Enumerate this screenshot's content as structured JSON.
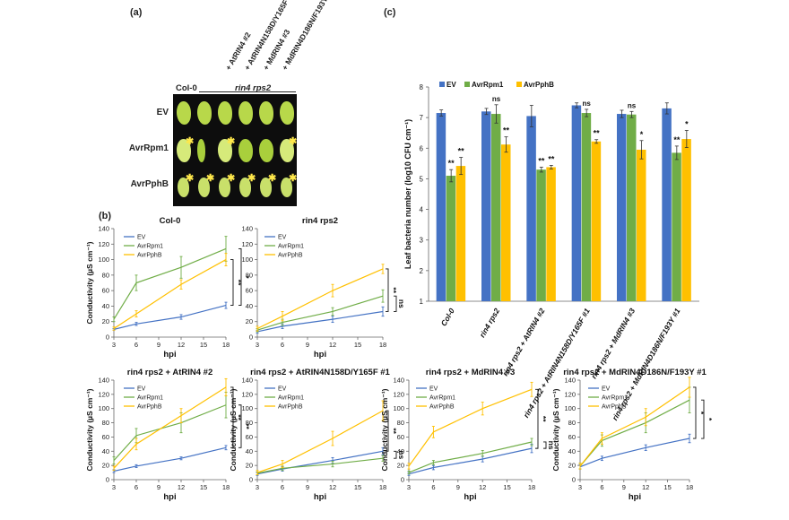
{
  "panels": {
    "a": "(a)",
    "b": "(b)",
    "c": "(c)"
  },
  "panel_a": {
    "col0_label": "Col-0",
    "mutant_label": "rin4 rps2",
    "column_labels": [
      "+ AtRIN4 #2",
      "+ AtRIN4N158D/Y165F #1",
      "+ MdRIN4 #3",
      "+ MdRIN4D186N/F193Y #1"
    ],
    "row_labels": [
      "EV",
      "AvrRpm1",
      "AvrPphB"
    ],
    "colors": {
      "leaf": "#b8d84a",
      "background": "#0d0d0d",
      "marker": "#ffe84a"
    }
  },
  "colors": {
    "EV": "#4472c4",
    "AvrRpm1": "#70ad47",
    "AvrPphB": "#ffc000"
  },
  "chart_data": [
    {
      "id": "b1",
      "type": "line",
      "title": "Col-0",
      "xlabel": "hpi",
      "ylabel": "Conductivity (µS cm⁻¹)",
      "x": [
        3,
        6,
        12,
        18
      ],
      "xticks": [
        3,
        6,
        9,
        12,
        15,
        18
      ],
      "ylim": [
        0,
        140
      ],
      "yticks": [
        0,
        20,
        40,
        60,
        80,
        100,
        120,
        140
      ],
      "series": [
        {
          "name": "EV",
          "values": [
            10,
            17,
            26,
            41
          ],
          "errors": [
            1,
            2,
            3,
            4
          ]
        },
        {
          "name": "AvrRpm1",
          "values": [
            23,
            70,
            90,
            114
          ],
          "errors": [
            3,
            10,
            14,
            16
          ]
        },
        {
          "name": "AvrPphB",
          "values": [
            11,
            30,
            68,
            100
          ],
          "errors": [
            2,
            4,
            6,
            8
          ]
        }
      ],
      "significance": [
        "**",
        "*"
      ]
    },
    {
      "id": "b2",
      "type": "line",
      "title": "rin4 rps2",
      "xlabel": "hpi",
      "ylabel": "",
      "x": [
        3,
        6,
        12,
        18
      ],
      "xticks": [
        3,
        6,
        9,
        12,
        15,
        18
      ],
      "ylim": [
        0,
        140
      ],
      "yticks": [
        0,
        20,
        40,
        60,
        80,
        100,
        120,
        140
      ],
      "series": [
        {
          "name": "EV",
          "values": [
            7,
            14,
            23,
            33
          ],
          "errors": [
            2,
            3,
            4,
            6
          ]
        },
        {
          "name": "AvrRpm1",
          "values": [
            9,
            19,
            33,
            53
          ],
          "errors": [
            2,
            4,
            5,
            8
          ]
        },
        {
          "name": "AvrPphB",
          "values": [
            11,
            27,
            60,
            88
          ],
          "errors": [
            3,
            6,
            8,
            6
          ]
        }
      ],
      "significance": [
        "**",
        "ns"
      ]
    },
    {
      "id": "b3",
      "type": "line",
      "title": "rin4 rps2 + AtRIN4 #2",
      "xlabel": "hpi",
      "ylabel": "Conductivity (µS cm⁻¹)",
      "x": [
        3,
        6,
        12,
        18
      ],
      "xticks": [
        3,
        6,
        9,
        12,
        15,
        18
      ],
      "ylim": [
        0,
        140
      ],
      "yticks": [
        0,
        20,
        40,
        60,
        80,
        100,
        120,
        140
      ],
      "series": [
        {
          "name": "EV",
          "values": [
            12,
            19,
            30,
            45
          ],
          "errors": [
            2,
            2,
            2,
            3
          ]
        },
        {
          "name": "AvrRpm1",
          "values": [
            27,
            62,
            80,
            105
          ],
          "errors": [
            5,
            10,
            14,
            18
          ]
        },
        {
          "name": "AvrPphB",
          "values": [
            16,
            50,
            90,
            130
          ],
          "errors": [
            3,
            8,
            10,
            12
          ]
        }
      ],
      "significance": [
        "**",
        "**"
      ]
    },
    {
      "id": "b4",
      "type": "line",
      "title": "rin4 rps2 + AtRIN4N158D/Y165F #1",
      "xlabel": "hpi",
      "ylabel": "Conductivity (µS cm⁻¹)",
      "x": [
        3,
        6,
        12,
        18
      ],
      "xticks": [
        3,
        6,
        9,
        12,
        15,
        18
      ],
      "ylim": [
        0,
        140
      ],
      "yticks": [
        0,
        20,
        40,
        60,
        80,
        100,
        120,
        140
      ],
      "series": [
        {
          "name": "EV",
          "values": [
            8,
            15,
            27,
            40
          ],
          "errors": [
            2,
            3,
            4,
            5
          ]
        },
        {
          "name": "AvrRpm1",
          "values": [
            9,
            16,
            22,
            30
          ],
          "errors": [
            2,
            3,
            4,
            4
          ]
        },
        {
          "name": "AvrPphB",
          "values": [
            10,
            22,
            58,
            97
          ],
          "errors": [
            3,
            5,
            10,
            14
          ]
        }
      ],
      "significance": [
        "**",
        "ns"
      ]
    },
    {
      "id": "b5",
      "type": "line",
      "title": "rin4 rps2 + MdRIN4 #3",
      "xlabel": "hpi",
      "ylabel": "Conductivity (µS cm⁻¹)",
      "x": [
        3,
        6,
        12,
        18
      ],
      "xticks": [
        3,
        6,
        9,
        12,
        15,
        18
      ],
      "ylim": [
        0,
        140
      ],
      "yticks": [
        0,
        20,
        40,
        60,
        80,
        100,
        120,
        140
      ],
      "series": [
        {
          "name": "EV",
          "values": [
            8,
            17,
            29,
            44
          ],
          "errors": [
            2,
            3,
            4,
            6
          ]
        },
        {
          "name": "AvrRpm1",
          "values": [
            10,
            24,
            37,
            53
          ],
          "errors": [
            2,
            3,
            4,
            5
          ]
        },
        {
          "name": "AvrPphB",
          "values": [
            19,
            67,
            100,
            127
          ],
          "errors": [
            4,
            8,
            9,
            10
          ]
        }
      ],
      "significance": [
        "**",
        "ns"
      ]
    },
    {
      "id": "b6",
      "type": "line",
      "title": "rin4 rps2 + MdRIN4D186N/F193Y #1",
      "xlabel": "hpi",
      "ylabel": "Conductivity (µS cm⁻¹)",
      "x": [
        3,
        6,
        12,
        18
      ],
      "xticks": [
        3,
        6,
        9,
        12,
        15,
        18
      ],
      "ylim": [
        0,
        140
      ],
      "yticks": [
        0,
        20,
        40,
        60,
        80,
        100,
        120,
        140
      ],
      "series": [
        {
          "name": "EV",
          "values": [
            18,
            30,
            45,
            58
          ],
          "errors": [
            3,
            3,
            4,
            6
          ]
        },
        {
          "name": "AvrRpm1",
          "values": [
            19,
            55,
            80,
            112
          ],
          "errors": [
            4,
            8,
            14,
            18
          ]
        },
        {
          "name": "AvrPphB",
          "values": [
            19,
            58,
            88,
            130
          ],
          "errors": [
            4,
            8,
            12,
            14
          ]
        }
      ],
      "significance": [
        "*",
        "*"
      ]
    },
    {
      "id": "c",
      "type": "bar",
      "ylabel": "Leaf bacteria number (log10 CFU cm⁻¹)",
      "ylim": [
        1,
        8
      ],
      "yticks": [
        1,
        2,
        3,
        4,
        5,
        6,
        7,
        8
      ],
      "categories": [
        "Col-0",
        "rin4 rps2",
        "rin4 rps2 + AtRIN4 #2",
        "rin4 rps2 + AtRIN4N158D/Y165F #1",
        "rin4 rps2 + MdRIN4 #3",
        "rin4 rps2 + MdRIN4D186N/F193Y #1"
      ],
      "series": [
        {
          "name": "EV",
          "values": [
            7.15,
            7.2,
            7.05,
            7.4,
            7.12,
            7.3
          ],
          "errors": [
            0.1,
            0.1,
            0.35,
            0.08,
            0.12,
            0.18
          ],
          "marks": [
            "",
            "",
            "",
            "",
            "",
            ""
          ]
        },
        {
          "name": "AvrRpm1",
          "values": [
            5.1,
            7.12,
            5.3,
            7.15,
            7.1,
            5.85
          ],
          "errors": [
            0.2,
            0.3,
            0.08,
            0.12,
            0.1,
            0.22
          ],
          "marks": [
            "**",
            "ns",
            "**",
            "ns",
            "ns",
            "**"
          ]
        },
        {
          "name": "AvrPphB",
          "values": [
            5.42,
            6.12,
            5.38,
            6.22,
            5.95,
            6.3
          ],
          "errors": [
            0.28,
            0.25,
            0.06,
            0.06,
            0.3,
            0.28
          ],
          "marks": [
            "**",
            "**",
            "**",
            "**",
            "*",
            "*"
          ]
        }
      ]
    }
  ]
}
